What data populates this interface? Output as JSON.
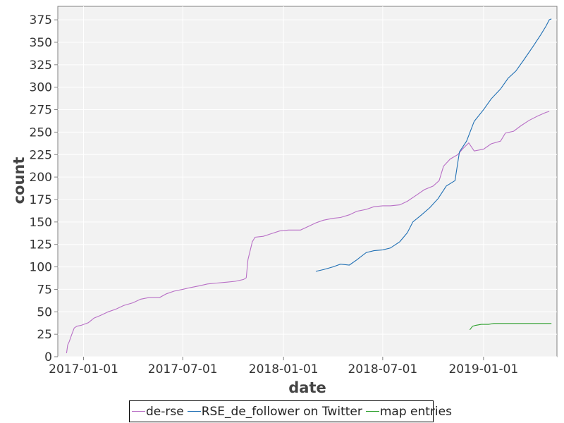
{
  "chart_data": {
    "type": "line",
    "xlabel": "date",
    "ylabel": "count",
    "x_type": "date",
    "xlim": [
      "2016-11-15",
      "2019-05-15"
    ],
    "ylim": [
      0,
      390
    ],
    "x_ticks": [
      "2017-01-01",
      "2017-07-01",
      "2018-01-01",
      "2018-07-01",
      "2019-01-01"
    ],
    "y_ticks": [
      0,
      25,
      50,
      75,
      100,
      125,
      150,
      175,
      200,
      225,
      250,
      275,
      300,
      325,
      350,
      375
    ],
    "grid": true,
    "legend_position": "bottom",
    "series": [
      {
        "name": "de-rse",
        "color": "#b86fc6",
        "points": [
          [
            "2016-12-01",
            4
          ],
          [
            "2016-12-03",
            13
          ],
          [
            "2016-12-06",
            17
          ],
          [
            "2016-12-10",
            24
          ],
          [
            "2016-12-15",
            32
          ],
          [
            "2016-12-20",
            34
          ],
          [
            "2016-12-28",
            35
          ],
          [
            "2017-01-10",
            38
          ],
          [
            "2017-01-20",
            43
          ],
          [
            "2017-02-01",
            46
          ],
          [
            "2017-02-15",
            50
          ],
          [
            "2017-03-01",
            53
          ],
          [
            "2017-03-15",
            57
          ],
          [
            "2017-04-01",
            60
          ],
          [
            "2017-04-15",
            64
          ],
          [
            "2017-05-01",
            66
          ],
          [
            "2017-05-20",
            66
          ],
          [
            "2017-06-01",
            70
          ],
          [
            "2017-06-15",
            73
          ],
          [
            "2017-07-01",
            75
          ],
          [
            "2017-07-15",
            77
          ],
          [
            "2017-08-01",
            79
          ],
          [
            "2017-08-15",
            81
          ],
          [
            "2017-09-01",
            82
          ],
          [
            "2017-09-20",
            83
          ],
          [
            "2017-10-05",
            84
          ],
          [
            "2017-10-20",
            86
          ],
          [
            "2017-10-25",
            88
          ],
          [
            "2017-10-28",
            108
          ],
          [
            "2017-11-01",
            118
          ],
          [
            "2017-11-05",
            128
          ],
          [
            "2017-11-10",
            133
          ],
          [
            "2017-11-25",
            134
          ],
          [
            "2017-12-10",
            137
          ],
          [
            "2017-12-25",
            140
          ],
          [
            "2018-01-10",
            141
          ],
          [
            "2018-02-01",
            141
          ],
          [
            "2018-02-15",
            145
          ],
          [
            "2018-03-01",
            149
          ],
          [
            "2018-03-15",
            152
          ],
          [
            "2018-04-01",
            154
          ],
          [
            "2018-04-15",
            155
          ],
          [
            "2018-05-01",
            158
          ],
          [
            "2018-05-15",
            162
          ],
          [
            "2018-06-01",
            164
          ],
          [
            "2018-06-15",
            167
          ],
          [
            "2018-07-01",
            168
          ],
          [
            "2018-07-15",
            168
          ],
          [
            "2018-08-01",
            169
          ],
          [
            "2018-08-15",
            173
          ],
          [
            "2018-09-01",
            180
          ],
          [
            "2018-09-15",
            186
          ],
          [
            "2018-10-01",
            190
          ],
          [
            "2018-10-12",
            196
          ],
          [
            "2018-10-20",
            212
          ],
          [
            "2018-11-01",
            220
          ],
          [
            "2018-11-15",
            225
          ],
          [
            "2018-11-25",
            232
          ],
          [
            "2018-12-05",
            238
          ],
          [
            "2018-12-15",
            229
          ],
          [
            "2019-01-01",
            231
          ],
          [
            "2019-01-15",
            237
          ],
          [
            "2019-02-01",
            240
          ],
          [
            "2019-02-10",
            249
          ],
          [
            "2019-02-25",
            251
          ],
          [
            "2019-03-10",
            257
          ],
          [
            "2019-03-25",
            263
          ],
          [
            "2019-04-10",
            268
          ],
          [
            "2019-04-25",
            272
          ],
          [
            "2019-05-01",
            273
          ]
        ]
      },
      {
        "name": "RSE_de_follower on Twitter",
        "color": "#1f6fb4",
        "points": [
          [
            "2018-03-01",
            95
          ],
          [
            "2018-03-15",
            97
          ],
          [
            "2018-04-01",
            100
          ],
          [
            "2018-04-15",
            103
          ],
          [
            "2018-05-01",
            102
          ],
          [
            "2018-05-15",
            108
          ],
          [
            "2018-06-01",
            116
          ],
          [
            "2018-06-15",
            118
          ],
          [
            "2018-07-01",
            119
          ],
          [
            "2018-07-15",
            121
          ],
          [
            "2018-08-01",
            128
          ],
          [
            "2018-08-15",
            138
          ],
          [
            "2018-08-25",
            150
          ],
          [
            "2018-09-10",
            158
          ],
          [
            "2018-09-25",
            166
          ],
          [
            "2018-10-10",
            176
          ],
          [
            "2018-10-25",
            190
          ],
          [
            "2018-11-10",
            196
          ],
          [
            "2018-11-18",
            228
          ],
          [
            "2018-12-01",
            240
          ],
          [
            "2018-12-15",
            262
          ],
          [
            "2019-01-01",
            275
          ],
          [
            "2019-01-15",
            287
          ],
          [
            "2019-02-01",
            298
          ],
          [
            "2019-02-15",
            310
          ],
          [
            "2019-03-01",
            318
          ],
          [
            "2019-03-15",
            330
          ],
          [
            "2019-04-01",
            345
          ],
          [
            "2019-04-15",
            358
          ],
          [
            "2019-04-25",
            368
          ],
          [
            "2019-05-01",
            375
          ],
          [
            "2019-05-05",
            376
          ]
        ]
      },
      {
        "name": "map entries",
        "color": "#2ca02c",
        "points": [
          [
            "2018-12-07",
            30
          ],
          [
            "2018-12-12",
            34
          ],
          [
            "2018-12-18",
            35
          ],
          [
            "2018-12-28",
            36
          ],
          [
            "2019-01-10",
            36
          ],
          [
            "2019-01-20",
            37
          ],
          [
            "2019-03-01",
            37
          ],
          [
            "2019-05-05",
            37
          ]
        ]
      }
    ]
  }
}
